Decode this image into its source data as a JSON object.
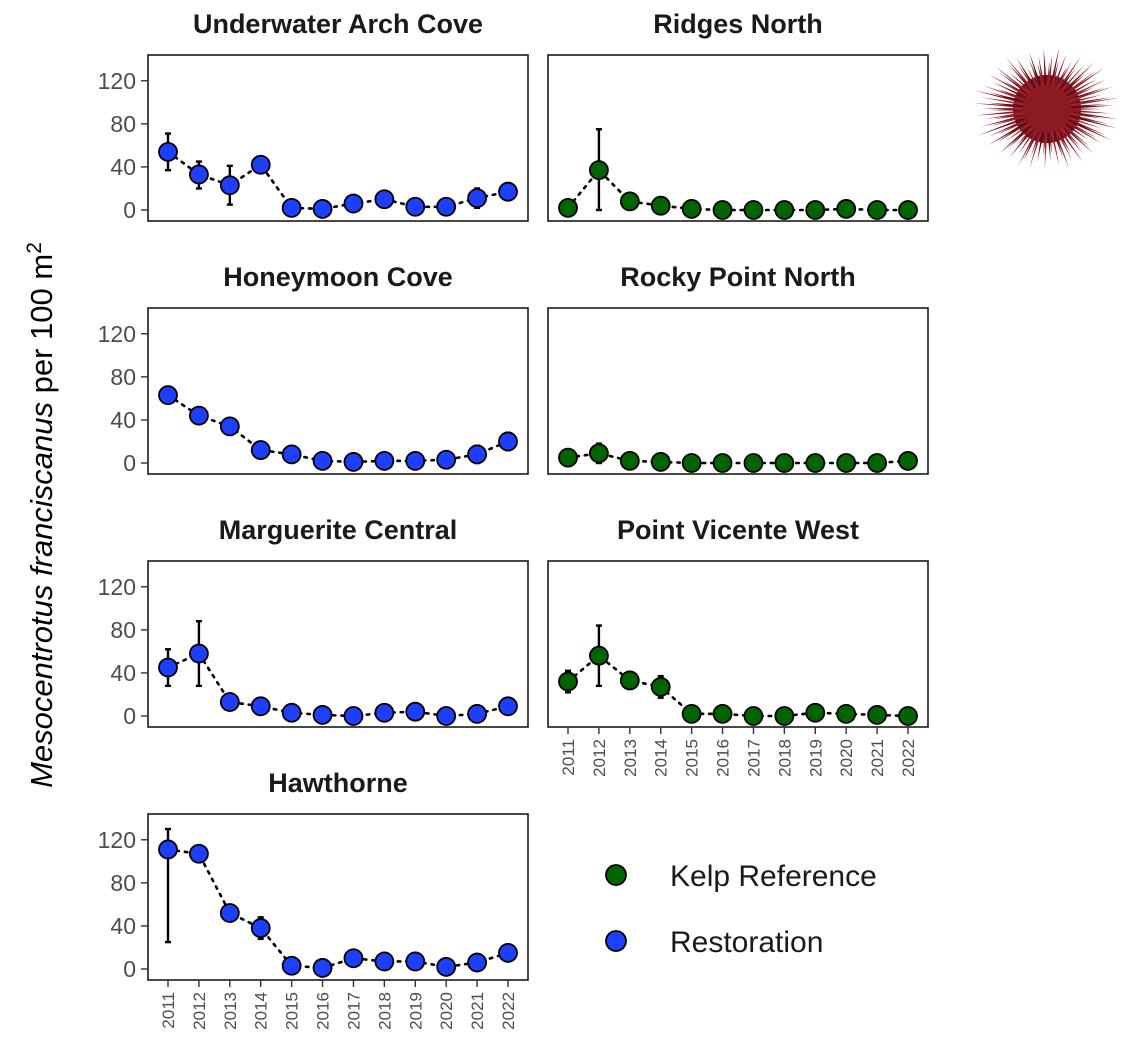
{
  "chart_data": {
    "type": "scatter",
    "ylabel_italic": "Mesocentrotus franciscanus",
    "ylabel_rest": " per 100 m",
    "ylabel_sup": "2",
    "ylim": [
      0,
      130
    ],
    "yticks": [
      "0",
      "40",
      "80",
      "120"
    ],
    "x": [
      "2011",
      "2012",
      "2013",
      "2014",
      "2015",
      "2016",
      "2017",
      "2018",
      "2019",
      "2020",
      "2021",
      "2022"
    ],
    "grid": false,
    "legend_position": "bottom-right",
    "legend": [
      {
        "label": "Kelp Reference",
        "color": "#006400"
      },
      {
        "label": "Restoration",
        "color": "#1f3fff"
      }
    ],
    "panels": [
      {
        "title": "Underwater Arch Cove",
        "group": "Restoration",
        "values": [
          54,
          33,
          23,
          42,
          2,
          1,
          6,
          10,
          3,
          3,
          11,
          17
        ],
        "err": [
          [
            37,
            71
          ],
          [
            20,
            45
          ],
          [
            5,
            41
          ],
          [
            36,
            48
          ],
          [
            0,
            4
          ],
          [
            0,
            2
          ],
          [
            2,
            10
          ],
          [
            5,
            15
          ],
          [
            0,
            6
          ],
          [
            0,
            6
          ],
          [
            2,
            20
          ],
          [
            9,
            25
          ]
        ]
      },
      {
        "title": "Ridges North",
        "group": "Kelp Reference",
        "values": [
          2,
          37,
          8,
          4,
          1,
          0,
          0,
          0,
          0,
          1,
          0,
          0
        ],
        "err": [
          [
            0,
            4
          ],
          [
            0,
            75
          ],
          [
            3,
            13
          ],
          [
            0,
            8
          ],
          [
            0,
            2
          ],
          [
            0,
            1
          ],
          [
            0,
            1
          ],
          [
            0,
            1
          ],
          [
            0,
            1
          ],
          [
            0,
            2
          ],
          [
            0,
            1
          ],
          [
            0,
            1
          ]
        ]
      },
      {
        "title": "Honeymoon Cove",
        "group": "Restoration",
        "values": [
          63,
          44,
          34,
          12,
          8,
          2,
          1,
          2,
          2,
          3,
          8,
          20
        ],
        "err": [
          [
            58,
            68
          ],
          [
            39,
            49
          ],
          [
            29,
            39
          ],
          [
            7,
            17
          ],
          [
            4,
            12
          ],
          [
            0,
            4
          ],
          [
            0,
            2
          ],
          [
            0,
            4
          ],
          [
            0,
            4
          ],
          [
            0,
            6
          ],
          [
            0,
            16
          ],
          [
            12,
            28
          ]
        ]
      },
      {
        "title": "Rocky Point North",
        "group": "Kelp Reference",
        "values": [
          5,
          9,
          2,
          1,
          0,
          0,
          0,
          0,
          0,
          0,
          0,
          2
        ],
        "err": [
          [
            1,
            9
          ],
          [
            0,
            18
          ],
          [
            0,
            4
          ],
          [
            0,
            2
          ],
          [
            0,
            1
          ],
          [
            0,
            1
          ],
          [
            0,
            1
          ],
          [
            0,
            1
          ],
          [
            0,
            1
          ],
          [
            0,
            1
          ],
          [
            0,
            1
          ],
          [
            0,
            4
          ]
        ]
      },
      {
        "title": "Marguerite Central",
        "group": "Restoration",
        "values": [
          45,
          58,
          13,
          9,
          3,
          1,
          0,
          3,
          4,
          0,
          2,
          9
        ],
        "err": [
          [
            28,
            62
          ],
          [
            28,
            88
          ],
          [
            8,
            18
          ],
          [
            5,
            13
          ],
          [
            0,
            6
          ],
          [
            0,
            3
          ],
          [
            0,
            1
          ],
          [
            0,
            6
          ],
          [
            0,
            8
          ],
          [
            0,
            1
          ],
          [
            0,
            5
          ],
          [
            4,
            14
          ]
        ]
      },
      {
        "title": "Point Vicente West",
        "group": "Kelp Reference",
        "values": [
          32,
          56,
          33,
          27,
          2,
          2,
          0,
          0,
          3,
          2,
          1,
          0
        ],
        "err": [
          [
            22,
            42
          ],
          [
            28,
            84
          ],
          [
            28,
            38
          ],
          [
            17,
            37
          ],
          [
            0,
            4
          ],
          [
            0,
            4
          ],
          [
            0,
            1
          ],
          [
            0,
            1
          ],
          [
            0,
            6
          ],
          [
            0,
            4
          ],
          [
            0,
            2
          ],
          [
            0,
            1
          ]
        ]
      },
      {
        "title": "Hawthorne",
        "group": "Restoration",
        "values": [
          111,
          107,
          52,
          38,
          3,
          1,
          10,
          7,
          7,
          2,
          6,
          15
        ],
        "err": [
          [
            25,
            130
          ],
          [
            102,
            112
          ],
          [
            47,
            57
          ],
          [
            28,
            48
          ],
          [
            0,
            6
          ],
          [
            0,
            3
          ],
          [
            5,
            15
          ],
          [
            2,
            12
          ],
          [
            2,
            12
          ],
          [
            0,
            4
          ],
          [
            1,
            11
          ],
          [
            10,
            20
          ]
        ]
      }
    ]
  },
  "illustration": {
    "name": "red-sea-urchin-icon",
    "color": "#8b1a24"
  }
}
